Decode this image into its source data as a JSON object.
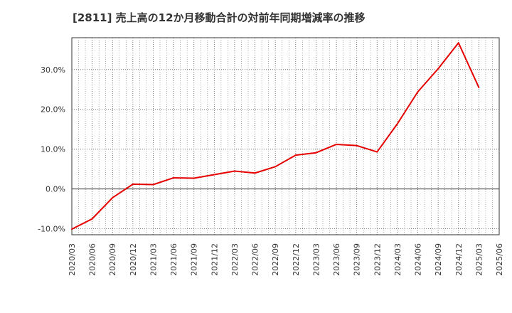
{
  "chart_data": {
    "type": "line",
    "title": "[2811]  売上高の12か月移動合計の対前年同期増減率の推移",
    "xlabel": "",
    "ylabel": "",
    "ylim": [
      -11.5,
      38.0
    ],
    "y_ticks": [
      -10,
      0,
      10,
      20,
      30
    ],
    "y_tick_labels": [
      "-10.0%",
      "0.0%",
      "10.0%",
      "20.0%",
      "30.0%"
    ],
    "categories": [
      "2020/03",
      "2020/06",
      "2020/09",
      "2020/12",
      "2021/03",
      "2021/06",
      "2021/09",
      "2021/12",
      "2022/03",
      "2022/06",
      "2022/09",
      "2022/12",
      "2023/03",
      "2023/06",
      "2023/09",
      "2023/12",
      "2024/03",
      "2024/06",
      "2024/09",
      "2024/12",
      "2025/03",
      "2025/06"
    ],
    "series": [
      {
        "name": "対前年同期増減率",
        "color": "#e60000",
        "values": [
          -10.1,
          -7.5,
          -2.2,
          1.2,
          1.1,
          2.8,
          2.7,
          3.6,
          4.5,
          4.0,
          5.6,
          8.5,
          9.1,
          11.2,
          10.9,
          9.3,
          16.4,
          24.4,
          30.2,
          36.7,
          25.5,
          null
        ]
      }
    ],
    "grid": true
  }
}
